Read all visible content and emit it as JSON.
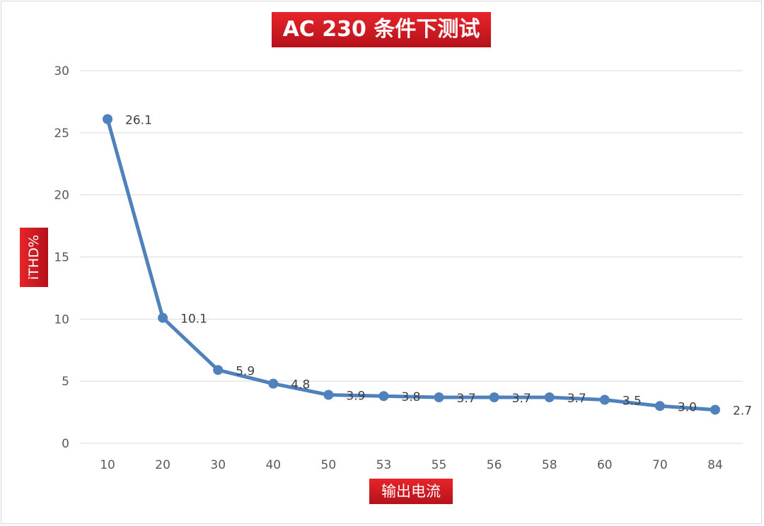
{
  "chart_data": {
    "type": "line",
    "title": "AC 230 条件下测试",
    "xlabel": "输出电流",
    "ylabel": "iTHD%",
    "categories": [
      "10",
      "20",
      "30",
      "40",
      "50",
      "53",
      "55",
      "56",
      "58",
      "60",
      "70",
      "84"
    ],
    "series": [
      {
        "values": [
          26.1,
          10.1,
          5.9,
          4.8,
          3.9,
          3.8,
          3.7,
          3.7,
          3.7,
          3.5,
          3.0,
          2.7
        ],
        "labels": [
          "26.1",
          "10.1",
          "5.9",
          "4.8",
          "3.9",
          "3.8",
          "3.7",
          "3.7",
          "3.7",
          "3.5",
          "3.0",
          "2.7"
        ],
        "color": "#4f81bd"
      }
    ],
    "ylim": [
      0,
      30
    ],
    "yticks": [
      "0",
      "5",
      "10",
      "15",
      "20",
      "25",
      "30"
    ],
    "grid": true,
    "legend": "none"
  },
  "colors": {
    "line": "#4f81bd",
    "label_bg": "#d81e24",
    "grid": "#d9d9d9"
  }
}
